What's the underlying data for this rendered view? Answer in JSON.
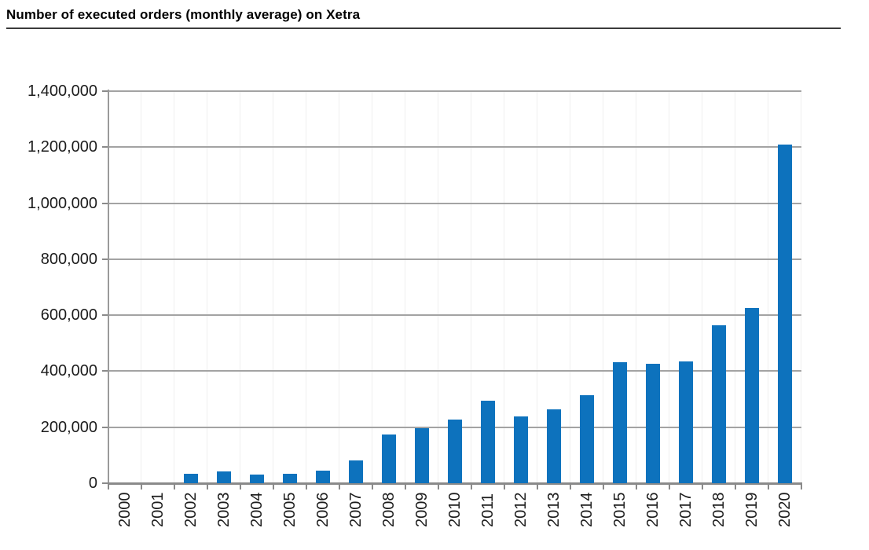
{
  "page": {
    "title": "Number of executed orders (monthly average) on Xetra"
  },
  "chart_data": {
    "type": "bar",
    "title": "Number of executed orders (monthly average) on Xetra",
    "xlabel": "",
    "ylabel": "",
    "categories": [
      "2000",
      "2001",
      "2002",
      "2003",
      "2004",
      "2005",
      "2006",
      "2007",
      "2008",
      "2009",
      "2010",
      "2011",
      "2012",
      "2013",
      "2014",
      "2015",
      "2016",
      "2017",
      "2018",
      "2019",
      "2020"
    ],
    "values": [
      0,
      0,
      33000,
      42000,
      30000,
      33000,
      46000,
      80000,
      175000,
      195000,
      228000,
      295000,
      238000,
      265000,
      315000,
      432000,
      427000,
      436000,
      563000,
      625000,
      1210000
    ],
    "ylim": [
      0,
      1400000
    ],
    "ytick_step": 200000,
    "yticks": [
      {
        "value": 0,
        "label": "0"
      },
      {
        "value": 200000,
        "label": "200,000"
      },
      {
        "value": 400000,
        "label": "400,000"
      },
      {
        "value": 600000,
        "label": "600,000"
      },
      {
        "value": 800000,
        "label": "800,000"
      },
      {
        "value": 1000000,
        "label": "1,000,000"
      },
      {
        "value": 1200000,
        "label": "1,200,000"
      },
      {
        "value": 1400000,
        "label": "1,400,000"
      }
    ],
    "grid": "horizontal-major, faint-vertical-minor",
    "legend_position": "none",
    "bar_color": "#0d72bd",
    "gridline_color": "#a3a3a3",
    "axis_color": "#8a8a8a",
    "text_color": "#1c1c1c",
    "title_rule_color": "#3b3b3b"
  }
}
